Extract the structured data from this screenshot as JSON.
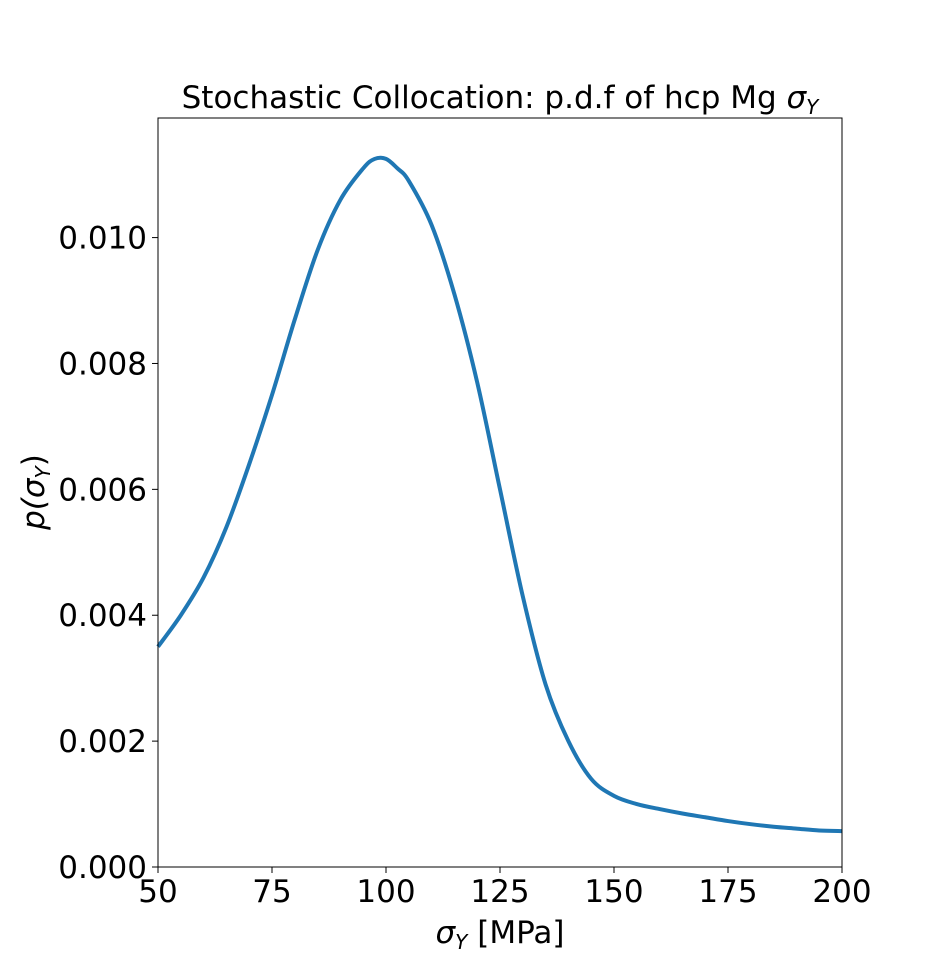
{
  "chart_data": {
    "type": "line",
    "title_prefix": "Stochastic Collocation: p.d.f of hcp Mg ",
    "title_symbol": "σ",
    "title_subscript": "Y",
    "xlabel_symbol": "σ",
    "xlabel_subscript": "Y",
    "xlabel_suffix": " [MPa]",
    "ylabel_prefix": "p(",
    "ylabel_symbol": "σ",
    "ylabel_subscript": "Y",
    "ylabel_suffix": ")",
    "xlim": [
      50,
      200
    ],
    "ylim": [
      0,
      0.0119
    ],
    "xticks": [
      50,
      75,
      100,
      125,
      150,
      175,
      200
    ],
    "xtick_labels": [
      "50",
      "75",
      "100",
      "125",
      "150",
      "175",
      "200"
    ],
    "yticks": [
      0,
      0.002,
      0.004,
      0.006,
      0.008,
      0.01
    ],
    "ytick_labels": [
      "0.000",
      "0.002",
      "0.004",
      "0.006",
      "0.008",
      "0.010"
    ],
    "grid": false,
    "series": [
      {
        "color": "#1f77b4",
        "x": [
          50,
          55,
          60,
          65,
          70,
          75,
          80,
          85,
          90,
          95,
          97.5,
          100,
          102.5,
          105,
          110,
          115,
          120,
          125,
          130,
          135,
          140,
          145,
          150,
          155,
          160,
          165,
          170,
          175,
          180,
          185,
          190,
          195,
          200
        ],
        "y": [
          0.0035,
          0.004,
          0.0046,
          0.0054,
          0.0064,
          0.0075,
          0.0087,
          0.0098,
          0.0106,
          0.0111,
          0.01125,
          0.01125,
          0.0111,
          0.0109,
          0.0102,
          0.0091,
          0.0077,
          0.006,
          0.0043,
          0.0029,
          0.002,
          0.0014,
          0.00113,
          0.001,
          0.00092,
          0.00085,
          0.00079,
          0.00073,
          0.00068,
          0.00064,
          0.00061,
          0.00058,
          0.00057
        ]
      }
    ]
  }
}
